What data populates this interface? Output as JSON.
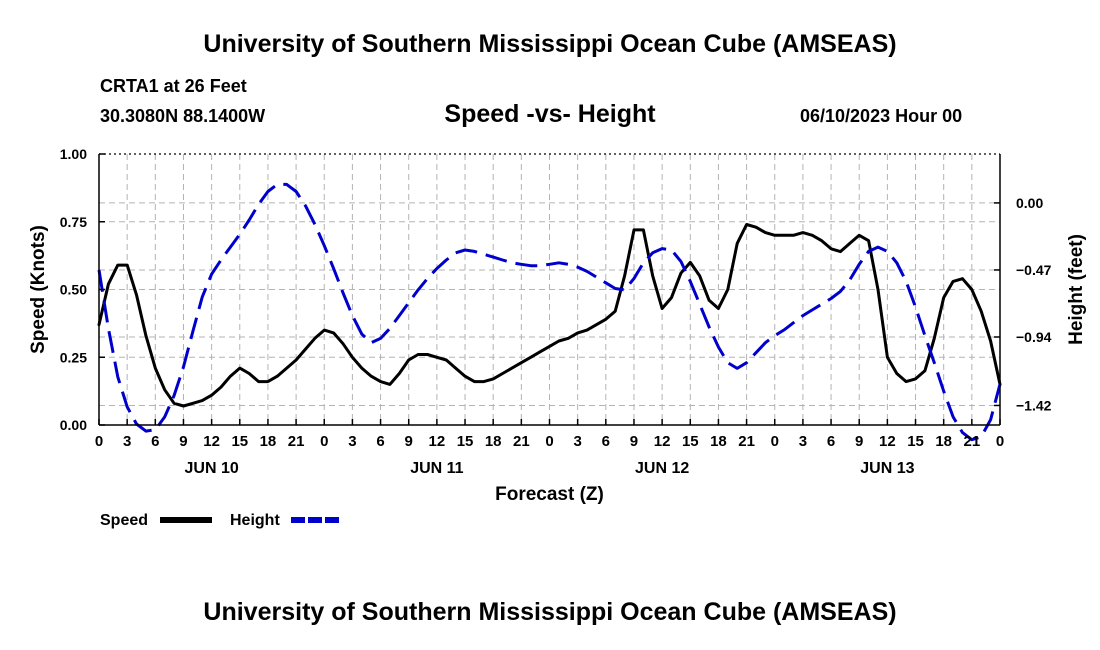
{
  "header": {
    "title": "University of Southern Mississippi Ocean Cube (AMSEAS)",
    "station": "CRTA1 at 26 Feet",
    "coords": "30.3080N  88.1400W",
    "subtitle": "Speed -vs- Height",
    "datetime": "06/10/2023 Hour 00",
    "footer_title": "University of Southern Mississippi Ocean Cube (AMSEAS)"
  },
  "chart_data": {
    "type": "line",
    "title": "Speed -vs- Height",
    "xlabel": "Forecast (Z)",
    "ylabel": "Speed (Knots)",
    "y2label": "Height (feet)",
    "xlim": [
      0,
      96
    ],
    "ylim": [
      0,
      1
    ],
    "y2lim": [
      -1.557,
      0.343
    ],
    "grid": true,
    "x_tick_values": [
      0,
      3,
      6,
      9,
      12,
      15,
      18,
      21,
      24,
      27,
      30,
      33,
      36,
      39,
      42,
      45,
      48,
      51,
      54,
      57,
      60,
      63,
      66,
      69,
      72,
      75,
      78,
      81,
      84,
      87,
      90,
      93,
      96
    ],
    "x_tick_labels": [
      "0",
      "3",
      "6",
      "9",
      "12",
      "15",
      "18",
      "21",
      "0",
      "3",
      "6",
      "9",
      "12",
      "15",
      "18",
      "21",
      "0",
      "3",
      "6",
      "9",
      "12",
      "15",
      "18",
      "21",
      "0",
      "3",
      "6",
      "9",
      "12",
      "15",
      "18",
      "21",
      "0"
    ],
    "date_labels": [
      {
        "x": 12,
        "label": "JUN 10"
      },
      {
        "x": 36,
        "label": "JUN 11"
      },
      {
        "x": 60,
        "label": "JUN 12"
      },
      {
        "x": 84,
        "label": "JUN 13"
      }
    ],
    "y_ticks": [
      {
        "v": 0.0,
        "label": "0.00"
      },
      {
        "v": 0.25,
        "label": "0.25"
      },
      {
        "v": 0.5,
        "label": "0.50"
      },
      {
        "v": 0.75,
        "label": "0.75"
      },
      {
        "v": 1.0,
        "label": "1.00"
      }
    ],
    "y2_ticks": [
      {
        "v": 0.0,
        "label": "0.00"
      },
      {
        "v": -0.47,
        "label": "−0.47"
      },
      {
        "v": -0.94,
        "label": "−0.94"
      },
      {
        "v": -1.42,
        "label": "−1.42"
      }
    ],
    "series": [
      {
        "name": "Speed",
        "axis": "left",
        "color": "#000000",
        "dash": "solid",
        "x": [
          0,
          1,
          2,
          3,
          4,
          5,
          6,
          7,
          8,
          9,
          10,
          11,
          12,
          13,
          14,
          15,
          16,
          17,
          18,
          19,
          20,
          21,
          22,
          23,
          24,
          25,
          26,
          27,
          28,
          29,
          30,
          31,
          32,
          33,
          34,
          35,
          36,
          37,
          38,
          39,
          40,
          41,
          42,
          43,
          44,
          45,
          46,
          47,
          48,
          49,
          50,
          51,
          52,
          53,
          54,
          55,
          56,
          57,
          58,
          59,
          60,
          61,
          62,
          63,
          64,
          65,
          66,
          67,
          68,
          69,
          70,
          71,
          72,
          73,
          74,
          75,
          76,
          77,
          78,
          79,
          80,
          81,
          82,
          83,
          84,
          85,
          86,
          87,
          88,
          89,
          90,
          91,
          92,
          93,
          94,
          95,
          96
        ],
        "values": [
          0.37,
          0.52,
          0.59,
          0.59,
          0.48,
          0.33,
          0.21,
          0.13,
          0.08,
          0.07,
          0.08,
          0.09,
          0.11,
          0.14,
          0.18,
          0.21,
          0.19,
          0.16,
          0.16,
          0.18,
          0.21,
          0.24,
          0.28,
          0.32,
          0.35,
          0.34,
          0.3,
          0.25,
          0.21,
          0.18,
          0.16,
          0.15,
          0.19,
          0.24,
          0.26,
          0.26,
          0.25,
          0.24,
          0.21,
          0.18,
          0.16,
          0.16,
          0.17,
          0.19,
          0.21,
          0.23,
          0.25,
          0.27,
          0.29,
          0.31,
          0.32,
          0.34,
          0.35,
          0.37,
          0.39,
          0.42,
          0.55,
          0.72,
          0.72,
          0.55,
          0.43,
          0.47,
          0.56,
          0.6,
          0.55,
          0.46,
          0.43,
          0.5,
          0.67,
          0.74,
          0.73,
          0.71,
          0.7,
          0.7,
          0.7,
          0.71,
          0.7,
          0.68,
          0.65,
          0.64,
          0.67,
          0.7,
          0.68,
          0.5,
          0.25,
          0.19,
          0.16,
          0.17,
          0.2,
          0.32,
          0.47,
          0.53,
          0.54,
          0.5,
          0.42,
          0.31,
          0.15
        ]
      },
      {
        "name": "Height",
        "axis": "right",
        "color": "#0000cc",
        "dash": "dashed",
        "x": [
          0,
          1,
          2,
          3,
          4,
          5,
          6,
          7,
          8,
          9,
          10,
          11,
          12,
          13,
          14,
          15,
          16,
          17,
          18,
          19,
          20,
          21,
          22,
          23,
          24,
          25,
          26,
          27,
          28,
          29,
          30,
          31,
          32,
          33,
          34,
          35,
          36,
          37,
          38,
          39,
          40,
          41,
          42,
          43,
          44,
          45,
          46,
          47,
          48,
          49,
          50,
          51,
          52,
          53,
          54,
          55,
          56,
          57,
          58,
          59,
          60,
          61,
          62,
          63,
          64,
          65,
          66,
          67,
          68,
          69,
          70,
          71,
          72,
          73,
          74,
          75,
          76,
          77,
          78,
          79,
          80,
          81,
          82,
          83,
          84,
          85,
          86,
          87,
          88,
          89,
          90,
          91,
          92,
          93,
          94,
          95,
          96
        ],
        "values": [
          -0.47,
          -0.88,
          -1.22,
          -1.43,
          -1.55,
          -1.6,
          -1.59,
          -1.5,
          -1.35,
          -1.15,
          -0.9,
          -0.66,
          -0.5,
          -0.4,
          -0.31,
          -0.22,
          -0.12,
          -0.01,
          0.08,
          0.13,
          0.13,
          0.08,
          -0.02,
          -0.15,
          -0.3,
          -0.46,
          -0.63,
          -0.79,
          -0.92,
          -0.98,
          -0.95,
          -0.88,
          -0.79,
          -0.7,
          -0.61,
          -0.53,
          -0.46,
          -0.4,
          -0.35,
          -0.33,
          -0.34,
          -0.36,
          -0.38,
          -0.4,
          -0.42,
          -0.43,
          -0.44,
          -0.44,
          -0.43,
          -0.42,
          -0.43,
          -0.45,
          -0.48,
          -0.52,
          -0.56,
          -0.6,
          -0.61,
          -0.53,
          -0.42,
          -0.35,
          -0.32,
          -0.33,
          -0.41,
          -0.55,
          -0.71,
          -0.87,
          -1.01,
          -1.12,
          -1.16,
          -1.12,
          -1.05,
          -0.98,
          -0.93,
          -0.89,
          -0.84,
          -0.79,
          -0.75,
          -0.71,
          -0.67,
          -0.62,
          -0.54,
          -0.43,
          -0.34,
          -0.31,
          -0.34,
          -0.42,
          -0.55,
          -0.73,
          -0.93,
          -1.12,
          -1.32,
          -1.5,
          -1.61,
          -1.66,
          -1.64,
          -1.52,
          -1.27
        ]
      }
    ],
    "legend": [
      {
        "label": "Speed",
        "color": "#000000",
        "dash": "solid"
      },
      {
        "label": "Height",
        "color": "#0000cc",
        "dash": "dashed"
      }
    ],
    "legend_position": "bottom-left"
  }
}
